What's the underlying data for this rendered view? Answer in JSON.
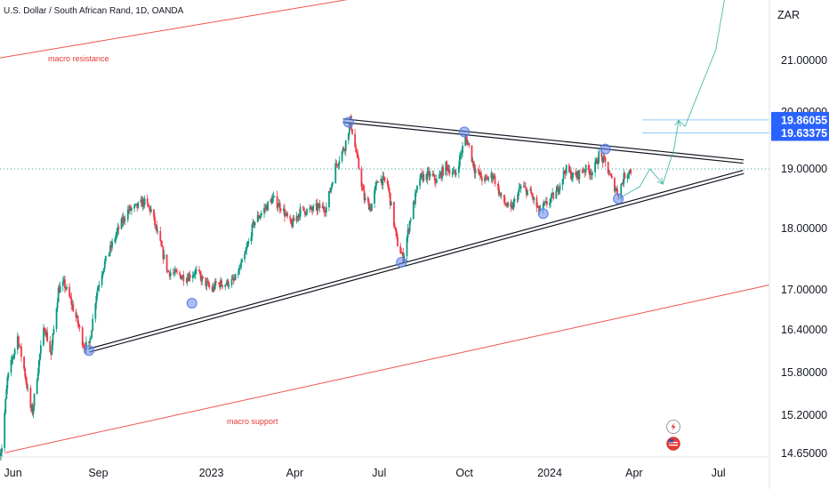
{
  "chart_data": {
    "type": "candlestick",
    "title": "U.S. Dollar / South African Rand, 1D, OANDA",
    "currency_label": "ZAR",
    "y_ticks": [
      "21.00000",
      "20.00000",
      "19.00000",
      "18.00000",
      "17.00000",
      "16.40000",
      "15.80000",
      "15.20000",
      "14.65000"
    ],
    "y_tick_values": [
      21.0,
      20.0,
      19.0,
      18.0,
      17.0,
      16.4,
      15.8,
      15.2,
      14.65
    ],
    "x_ticks": [
      "Jun",
      "Sep",
      "2023",
      "Apr",
      "Jul",
      "Oct",
      "2024",
      "Apr",
      "Jul"
    ],
    "x_tick_dates": [
      "2022-06-01",
      "2022-09-01",
      "2023-01-01",
      "2023-04-01",
      "2023-07-01",
      "2023-10-01",
      "2024-01-01",
      "2024-04-01",
      "2024-07-01"
    ],
    "x_range": [
      "2022-05-18",
      "2024-08-25"
    ],
    "price_tags": [
      {
        "label": "19.86055",
        "value": 19.86055,
        "color": "#2962ff"
      },
      {
        "label": "19.63375",
        "value": 19.63375,
        "color": "#2962ff"
      }
    ],
    "price_path": [
      [
        "2022-05-18",
        14.65
      ],
      [
        "2022-05-20",
        14.75
      ],
      [
        "2022-05-26",
        15.7
      ],
      [
        "2022-06-06",
        16.3
      ],
      [
        "2022-06-13",
        15.85
      ],
      [
        "2022-06-20",
        15.3
      ],
      [
        "2022-06-22",
        15.25
      ],
      [
        "2022-06-30",
        16.05
      ],
      [
        "2022-07-05",
        16.45
      ],
      [
        "2022-07-12",
        16.05
      ],
      [
        "2022-07-20",
        17.0
      ],
      [
        "2022-07-26",
        17.1
      ],
      [
        "2022-08-02",
        16.85
      ],
      [
        "2022-08-10",
        16.5
      ],
      [
        "2022-08-16",
        16.2
      ],
      [
        "2022-08-22",
        16.15
      ],
      [
        "2022-08-30",
        16.95
      ],
      [
        "2022-09-07",
        17.4
      ],
      [
        "2022-09-15",
        17.7
      ],
      [
        "2022-09-23",
        18.0
      ],
      [
        "2022-10-03",
        18.3
      ],
      [
        "2022-10-12",
        18.35
      ],
      [
        "2022-10-20",
        18.45
      ],
      [
        "2022-10-28",
        18.3
      ],
      [
        "2022-11-04",
        17.9
      ],
      [
        "2022-11-15",
        17.3
      ],
      [
        "2022-11-25",
        17.25
      ],
      [
        "2022-12-05",
        17.2
      ],
      [
        "2022-12-15",
        17.3
      ],
      [
        "2022-12-23",
        17.15
      ],
      [
        "2023-01-02",
        17.0
      ],
      [
        "2023-01-06",
        17.1
      ],
      [
        "2023-01-16",
        17.1
      ],
      [
        "2023-01-26",
        17.15
      ],
      [
        "2023-02-05",
        17.5
      ],
      [
        "2023-02-16",
        18.1
      ],
      [
        "2023-02-26",
        18.3
      ],
      [
        "2023-03-08",
        18.5
      ],
      [
        "2023-03-18",
        18.35
      ],
      [
        "2023-03-28",
        18.05
      ],
      [
        "2023-04-07",
        18.3
      ],
      [
        "2023-04-17",
        18.3
      ],
      [
        "2023-04-26",
        18.35
      ],
      [
        "2023-05-05",
        18.35
      ],
      [
        "2023-05-15",
        19.05
      ],
      [
        "2023-05-25",
        19.4
      ],
      [
        "2023-05-31",
        19.85
      ],
      [
        "2023-06-07",
        19.2
      ],
      [
        "2023-06-15",
        18.5
      ],
      [
        "2023-06-22",
        18.35
      ],
      [
        "2023-06-30",
        18.85
      ],
      [
        "2023-07-10",
        18.75
      ],
      [
        "2023-07-20",
        17.8
      ],
      [
        "2023-07-27",
        17.5
      ],
      [
        "2023-08-04",
        18.2
      ],
      [
        "2023-08-14",
        18.85
      ],
      [
        "2023-08-24",
        18.9
      ],
      [
        "2023-09-01",
        18.8
      ],
      [
        "2023-09-11",
        19.05
      ],
      [
        "2023-09-21",
        18.9
      ],
      [
        "2023-10-02",
        19.55
      ],
      [
        "2023-10-05",
        19.45
      ],
      [
        "2023-10-12",
        19.0
      ],
      [
        "2023-10-22",
        18.8
      ],
      [
        "2023-11-01",
        18.9
      ],
      [
        "2023-11-10",
        18.5
      ],
      [
        "2023-11-20",
        18.3
      ],
      [
        "2023-12-01",
        18.7
      ],
      [
        "2023-12-11",
        18.6
      ],
      [
        "2023-12-20",
        18.3
      ],
      [
        "2023-12-28",
        18.4
      ],
      [
        "2024-01-08",
        18.6
      ],
      [
        "2024-01-18",
        19.0
      ],
      [
        "2024-01-28",
        18.85
      ],
      [
        "2024-02-07",
        19.0
      ],
      [
        "2024-02-17",
        18.95
      ],
      [
        "2024-02-23",
        19.25
      ],
      [
        "2024-03-01",
        19.1
      ],
      [
        "2024-03-09",
        18.75
      ],
      [
        "2024-03-15",
        18.6
      ],
      [
        "2024-03-22",
        18.9
      ],
      [
        "2024-03-29",
        19.0
      ]
    ],
    "annotations": {
      "macro_resistance": {
        "label": "macro resistance",
        "start": [
          "2022-05-18",
          21.05
        ],
        "end": [
          "2023-07-13",
          22.32
        ]
      },
      "macro_support": {
        "label": "macro support",
        "start": [
          "2022-05-23",
          14.66
        ],
        "end": [
          "2024-08-25",
          17.08
        ]
      },
      "triangle_upper": {
        "start": [
          "2023-05-23",
          19.85
        ],
        "end": [
          "2024-07-28",
          19.13
        ]
      },
      "triangle_lower": {
        "start": [
          "2022-08-22",
          16.11
        ],
        "end": [
          "2024-07-28",
          18.95
        ]
      },
      "horizontal_level": 19.0,
      "touch_points": [
        [
          "2022-08-22",
          16.11
        ],
        [
          "2022-12-11",
          16.8
        ],
        [
          "2023-05-29",
          19.82
        ],
        [
          "2023-07-25",
          17.45
        ],
        [
          "2023-10-01",
          19.65
        ],
        [
          "2023-12-25",
          18.25
        ],
        [
          "2024-03-01",
          19.35
        ],
        [
          "2024-03-15",
          18.5
        ]
      ],
      "projection_path": [
        [
          "2024-03-15",
          18.5
        ],
        [
          "2024-04-07",
          18.7
        ],
        [
          "2024-04-18",
          19.0
        ],
        [
          "2024-05-02",
          18.75
        ],
        [
          "2024-05-14",
          19.35
        ],
        [
          "2024-05-19",
          19.85
        ],
        [
          "2024-05-26",
          19.75
        ],
        [
          "2024-06-28",
          21.2
        ],
        [
          "2024-07-13",
          22.75
        ]
      ],
      "horizontal_targets": [
        19.86055,
        19.63375
      ]
    }
  }
}
